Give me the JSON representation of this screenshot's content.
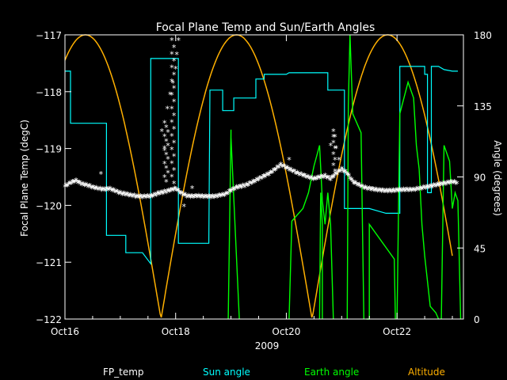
{
  "chart_data": {
    "type": "line",
    "title": "Focal Plane Temp and Sun/Earth Angles",
    "xlabel": "2009",
    "ylabel_left": "Focal Plane Temp (degC)",
    "ylabel_right": "Angle (degrees)",
    "x_unit": "days since Oct16 2009",
    "xlim": [
      0,
      7.2
    ],
    "ylim_left": [
      -122,
      -117
    ],
    "ylim_right": [
      0,
      180
    ],
    "x_ticks": [
      {
        "value": 0,
        "label": "Oct16"
      },
      {
        "value": 2,
        "label": "Oct18"
      },
      {
        "value": 4,
        "label": "Oct20"
      },
      {
        "value": 6,
        "label": "Oct22"
      }
    ],
    "y_ticks_left": [
      {
        "value": -117,
        "label": "−117"
      },
      {
        "value": -118,
        "label": "−118"
      },
      {
        "value": -119,
        "label": "−119"
      },
      {
        "value": -120,
        "label": "−120"
      },
      {
        "value": -121,
        "label": "−121"
      },
      {
        "value": -122,
        "label": "−122"
      }
    ],
    "y_ticks_right": [
      {
        "value": 0,
        "label": "0"
      },
      {
        "value": 45,
        "label": "45"
      },
      {
        "value": 90,
        "label": "90"
      },
      {
        "value": 135,
        "label": "135"
      },
      {
        "value": 180,
        "label": "180"
      }
    ],
    "grid": false,
    "legend_position": "bottom",
    "series": [
      {
        "name": "FP_temp",
        "axis": "left",
        "color": "#ffffff",
        "marker": "asterisk",
        "points": [
          [
            0.0,
            -119.68
          ],
          [
            0.1,
            -119.62
          ],
          [
            0.2,
            -119.58
          ],
          [
            0.3,
            -119.64
          ],
          [
            0.4,
            -119.66
          ],
          [
            0.5,
            -119.7
          ],
          [
            0.6,
            -119.72
          ],
          [
            0.7,
            -119.74
          ],
          [
            0.8,
            -119.72
          ],
          [
            0.9,
            -119.76
          ],
          [
            1.0,
            -119.8
          ],
          [
            1.1,
            -119.82
          ],
          [
            1.2,
            -119.84
          ],
          [
            1.3,
            -119.86
          ],
          [
            1.4,
            -119.86
          ],
          [
            1.5,
            -119.86
          ],
          [
            1.6,
            -119.84
          ],
          [
            1.7,
            -119.8
          ],
          [
            1.8,
            -119.78
          ],
          [
            1.9,
            -119.75
          ],
          [
            2.0,
            -119.72
          ],
          [
            2.1,
            -119.8
          ],
          [
            2.2,
            -119.85
          ],
          [
            2.3,
            -119.86
          ],
          [
            2.4,
            -119.85
          ],
          [
            2.5,
            -119.86
          ],
          [
            2.6,
            -119.86
          ],
          [
            2.7,
            -119.86
          ],
          [
            2.8,
            -119.84
          ],
          [
            2.9,
            -119.82
          ],
          [
            3.0,
            -119.75
          ],
          [
            3.1,
            -119.7
          ],
          [
            3.2,
            -119.68
          ],
          [
            3.3,
            -119.65
          ],
          [
            3.4,
            -119.6
          ],
          [
            3.5,
            -119.55
          ],
          [
            3.6,
            -119.5
          ],
          [
            3.7,
            -119.45
          ],
          [
            3.8,
            -119.38
          ],
          [
            3.9,
            -119.3
          ],
          [
            4.0,
            -119.35
          ],
          [
            4.1,
            -119.4
          ],
          [
            4.2,
            -119.45
          ],
          [
            4.3,
            -119.48
          ],
          [
            4.4,
            -119.52
          ],
          [
            4.5,
            -119.55
          ],
          [
            4.6,
            -119.52
          ],
          [
            4.7,
            -119.5
          ],
          [
            4.8,
            -119.55
          ],
          [
            4.9,
            -119.45
          ],
          [
            5.0,
            -119.38
          ],
          [
            5.1,
            -119.45
          ],
          [
            5.2,
            -119.6
          ],
          [
            5.3,
            -119.65
          ],
          [
            5.4,
            -119.7
          ],
          [
            5.5,
            -119.72
          ],
          [
            5.6,
            -119.74
          ],
          [
            5.7,
            -119.75
          ],
          [
            5.8,
            -119.76
          ],
          [
            5.9,
            -119.76
          ],
          [
            6.0,
            -119.75
          ],
          [
            6.1,
            -119.74
          ],
          [
            6.2,
            -119.74
          ],
          [
            6.3,
            -119.74
          ],
          [
            6.4,
            -119.72
          ],
          [
            6.5,
            -119.7
          ],
          [
            6.6,
            -119.68
          ],
          [
            6.7,
            -119.66
          ],
          [
            6.8,
            -119.64
          ],
          [
            6.9,
            -119.62
          ],
          [
            7.0,
            -119.6
          ],
          [
            7.1,
            -119.62
          ]
        ],
        "outliers": [
          [
            0.65,
            -119.45
          ],
          [
            1.85,
            -118.3
          ],
          [
            1.9,
            -118.05
          ],
          [
            1.95,
            -117.85
          ],
          [
            2.0,
            -117.6
          ],
          [
            2.02,
            -117.35
          ],
          [
            2.05,
            -117.1
          ],
          [
            1.75,
            -118.7
          ],
          [
            1.8,
            -119.0
          ],
          [
            2.15,
            -120.02
          ],
          [
            2.3,
            -119.7
          ],
          [
            4.85,
            -118.8
          ],
          [
            4.9,
            -119.0
          ],
          [
            4.95,
            -119.2
          ],
          [
            4.8,
            -118.95
          ],
          [
            4.05,
            -119.2
          ]
        ]
      },
      {
        "name": "Sun angle",
        "axis": "right",
        "color": "#00ffff",
        "points": [
          [
            0.0,
            157
          ],
          [
            0.1,
            157
          ],
          [
            0.1,
            124
          ],
          [
            0.75,
            124
          ],
          [
            0.75,
            53
          ],
          [
            1.1,
            53
          ],
          [
            1.1,
            46
          ],
          [
            1.1,
            42
          ],
          [
            1.4,
            42
          ],
          [
            1.55,
            35
          ],
          [
            1.55,
            165
          ],
          [
            2.05,
            165
          ],
          [
            2.05,
            48
          ],
          [
            2.6,
            48
          ],
          [
            2.6,
            48
          ],
          [
            2.62,
            145
          ],
          [
            2.85,
            145
          ],
          [
            2.85,
            132
          ],
          [
            3.05,
            132
          ],
          [
            3.05,
            140
          ],
          [
            3.45,
            140
          ],
          [
            3.45,
            152
          ],
          [
            3.6,
            152
          ],
          [
            3.6,
            155
          ],
          [
            4.0,
            155
          ],
          [
            4.05,
            156
          ],
          [
            4.75,
            156
          ],
          [
            4.75,
            145
          ],
          [
            5.05,
            145
          ],
          [
            5.05,
            70
          ],
          [
            5.5,
            70
          ],
          [
            5.7,
            68
          ],
          [
            5.8,
            67
          ],
          [
            6.05,
            67
          ],
          [
            6.05,
            160
          ],
          [
            6.5,
            160
          ],
          [
            6.5,
            155
          ],
          [
            6.55,
            155
          ],
          [
            6.55,
            80
          ],
          [
            6.62,
            80
          ],
          [
            6.62,
            160
          ],
          [
            6.75,
            160
          ],
          [
            6.85,
            158
          ],
          [
            7.0,
            157
          ],
          [
            7.1,
            157
          ]
        ]
      },
      {
        "name": "Earth angle",
        "axis": "right",
        "color": "#00ff00",
        "points": [
          [
            0.0,
            0
          ],
          [
            0.05,
            2
          ],
          [
            0.05,
            0
          ],
          [
            1.05,
            0
          ],
          [
            1.1,
            0
          ],
          [
            1.25,
            0
          ],
          [
            1.3,
            90
          ],
          [
            1.55,
            0
          ],
          [
            1.6,
            90
          ],
          [
            1.68,
            95
          ],
          [
            1.68,
            96
          ],
          [
            1.75,
            98
          ],
          [
            1.85,
            100
          ],
          [
            1.9,
            98
          ],
          [
            1.95,
            95
          ],
          [
            2.0,
            93
          ],
          [
            2.2,
            98
          ],
          [
            2.35,
            100
          ],
          [
            2.55,
            102
          ],
          [
            2.6,
            105
          ],
          [
            2.95,
            112
          ],
          [
            3.0,
            104
          ],
          [
            3.05,
            100
          ],
          [
            3.2,
            106
          ],
          [
            3.35,
            108
          ],
          [
            3.5,
            112
          ],
          [
            3.65,
            115
          ],
          [
            3.8,
            120
          ],
          [
            3.9,
            125
          ],
          [
            4.0,
            128
          ],
          [
            4.05,
            135
          ],
          [
            4.15,
            142
          ],
          [
            4.25,
            147
          ],
          [
            4.35,
            152
          ],
          [
            4.45,
            158
          ],
          [
            4.55,
            162
          ],
          [
            4.65,
            166
          ],
          [
            4.75,
            169
          ],
          [
            4.85,
            172
          ],
          [
            4.95,
            175
          ],
          [
            5.05,
            178
          ],
          [
            5.15,
            180
          ]
        ],
        "segments": [
          [
            [
              2.95,
              0
            ],
            [
              3.0,
              120
            ],
            [
              3.0,
              115
            ],
            [
              3.15,
              0
            ]
          ],
          [
            [
              4.05,
              0
            ],
            [
              4.1,
              62
            ],
            [
              4.3,
              70
            ],
            [
              4.4,
              80
            ],
            [
              4.5,
              97
            ],
            [
              4.6,
              110
            ],
            [
              4.65,
              75
            ],
            [
              4.7,
              60
            ],
            [
              4.75,
              80
            ],
            [
              4.8,
              60
            ],
            [
              4.85,
              0
            ]
          ],
          [
            [
              4.6,
              0
            ],
            [
              4.62,
              80
            ],
            [
              4.65,
              60
            ],
            [
              4.65,
              0
            ]
          ],
          [
            [
              5.1,
              0
            ],
            [
              5.12,
              135
            ],
            [
              5.15,
              180
            ],
            [
              5.2,
              130
            ],
            [
              5.3,
              122
            ],
            [
              5.35,
              118
            ],
            [
              5.4,
              0
            ]
          ],
          [
            [
              5.45,
              0
            ],
            [
              5.5,
              0
            ],
            [
              5.5,
              60
            ],
            [
              5.95,
              38
            ],
            [
              5.97,
              0
            ]
          ],
          [
            [
              6.0,
              0
            ],
            [
              6.05,
              130
            ],
            [
              6.2,
              150
            ],
            [
              6.3,
              140
            ],
            [
              6.35,
              110
            ],
            [
              6.4,
              95
            ],
            [
              6.45,
              60
            ],
            [
              6.5,
              40
            ],
            [
              6.6,
              8
            ],
            [
              6.7,
              4
            ],
            [
              6.75,
              0
            ]
          ],
          [
            [
              6.8,
              0
            ],
            [
              6.85,
              110
            ],
            [
              6.95,
              100
            ],
            [
              7.0,
              70
            ],
            [
              7.05,
              80
            ],
            [
              7.1,
              75
            ],
            [
              7.15,
              0
            ]
          ]
        ]
      },
      {
        "name": "Altitude",
        "axis": "right",
        "color": "#ffb000"
      }
    ]
  }
}
